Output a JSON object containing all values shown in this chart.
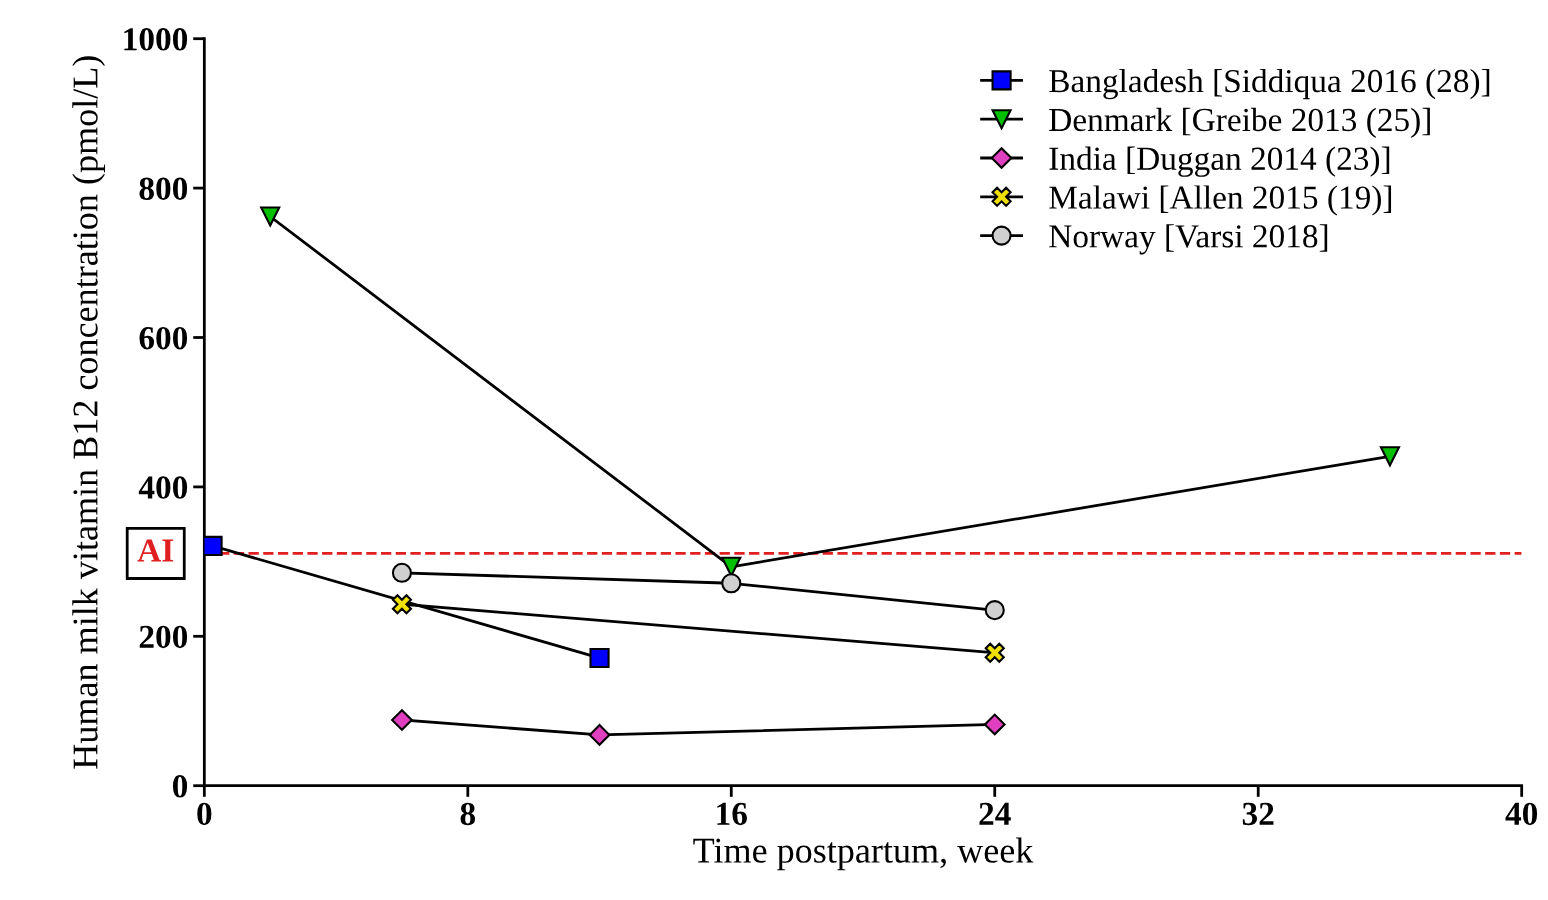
{
  "chart_data": {
    "type": "line",
    "xlabel": "Time postpartum, week",
    "ylabel": "Human milk vitamin B12 concentration (pmol/L)",
    "xlim": [
      0,
      40
    ],
    "xticks": [
      0,
      8,
      16,
      24,
      32,
      40
    ],
    "ylim": [
      0,
      1000
    ],
    "yticks": [
      0,
      200,
      400,
      600,
      800,
      1000
    ],
    "grid": false,
    "legend": "top right",
    "line_style": "solid",
    "ref_lines": [
      {
        "axis": "y",
        "value": 311,
        "label": "AI",
        "color": "#e02020",
        "line_style": "dashed"
      }
    ],
    "series": [
      {
        "name": "Bangladesh [Siddiqua 2016 (28)]",
        "color": "#0000ff",
        "marker": "square",
        "x": [
          0.25,
          12
        ],
        "values": [
          321,
          171
        ]
      },
      {
        "name": "Denmark [Greibe 2013 (25)]",
        "color": "#00c000",
        "marker": "triangle",
        "x": [
          2,
          16,
          36
        ],
        "values": [
          762,
          293,
          441
        ]
      },
      {
        "name": "India [Duggan 2014 (23)]",
        "color": "#e040c0",
        "marker": "diamond",
        "x": [
          6,
          12,
          24
        ],
        "values": [
          88,
          68,
          82
        ]
      },
      {
        "name": "Malawi [Allen 2015 (19)]",
        "color": "#f0e000",
        "marker": "cross",
        "x": [
          6,
          24
        ],
        "values": [
          243,
          178
        ]
      },
      {
        "name": "Norway [Varsi 2018]",
        "color": "#d0d0d0",
        "marker": "circle",
        "x": [
          6,
          16,
          24
        ],
        "values": [
          285,
          271,
          235
        ]
      }
    ]
  }
}
